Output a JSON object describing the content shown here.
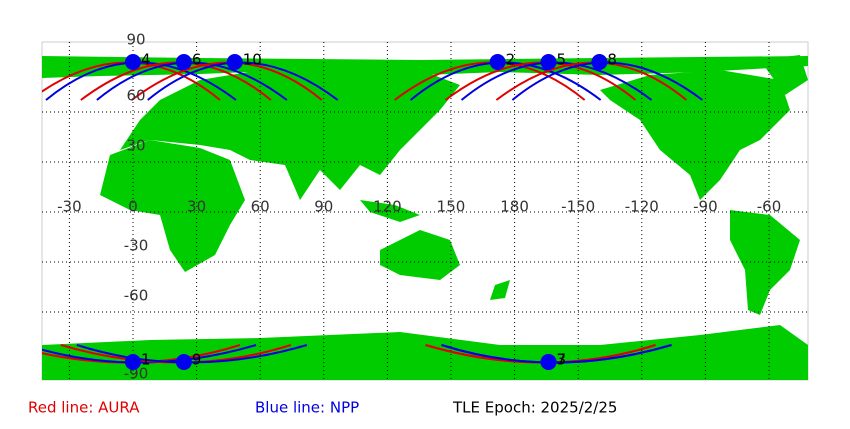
{
  "map": {
    "lon_ticks": [
      -30,
      0,
      30,
      60,
      90,
      120,
      150,
      180,
      -150,
      -120,
      -90,
      -60
    ],
    "lat_ticks": [
      90,
      60,
      30,
      -30,
      -60,
      -90
    ],
    "points": [
      {
        "label": "4",
        "lon": 0,
        "lat": 90
      },
      {
        "label": "6",
        "lon": 24,
        "lat": 90
      },
      {
        "label": "10",
        "lon": 48,
        "lat": 90
      },
      {
        "label": "2",
        "lon": 172,
        "lat": 90
      },
      {
        "label": "5",
        "lon": -164,
        "lat": 90
      },
      {
        "label": "8",
        "lon": -140,
        "lat": 90
      },
      {
        "label": "1",
        "lon": 0,
        "lat": -90
      },
      {
        "label": "9",
        "lon": 24,
        "lat": -90
      },
      {
        "label": "3",
        "lon": -164,
        "lat": -90
      },
      {
        "label": "7",
        "lon": -164,
        "lat": -90
      }
    ]
  },
  "legend": {
    "red": "Red line: AURA",
    "blue": "Blue line: NPP",
    "epoch": "TLE Epoch: 2025/2/25"
  }
}
